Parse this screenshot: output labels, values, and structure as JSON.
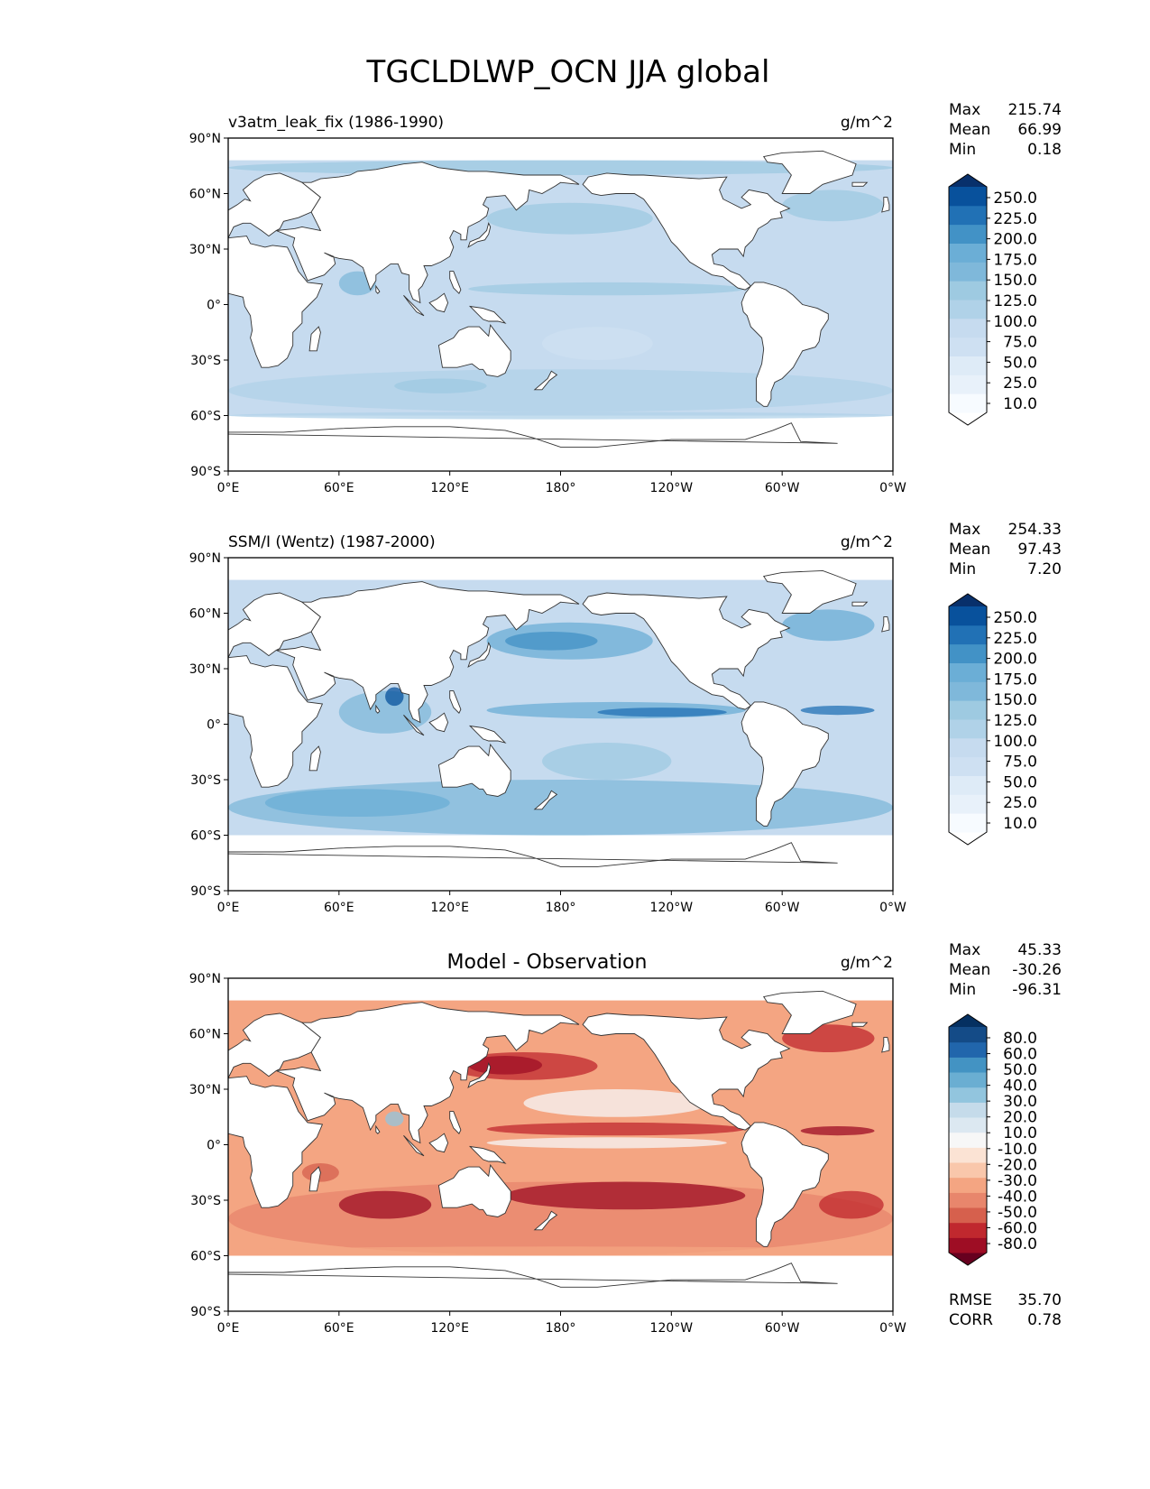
{
  "title": "TGCLDLWP_OCN JJA global",
  "lat_ticks": [
    "90°N",
    "60°N",
    "30°N",
    "0°",
    "30°S",
    "60°S",
    "90°S"
  ],
  "lon_ticks": [
    "0°E",
    "60°E",
    "120°E",
    "180°",
    "120°W",
    "60°W",
    "0°W"
  ],
  "colors": {
    "frame": "#000000",
    "land": "#ffffff",
    "coast": "#333333",
    "ocean_blue_base": "#c6dbef",
    "ocean_diff_base": "#f4a582"
  },
  "panels": [
    {
      "id": "model",
      "left_title": "v3atm_leak_fix (1986-1990)",
      "center_title": "",
      "units": "g/m^2",
      "stats": [
        {
          "label": "Max",
          "value": "215.74"
        },
        {
          "label": "Mean",
          "value": "66.99"
        },
        {
          "label": "Min",
          "value": "0.18"
        }
      ],
      "colorbar_labels": [
        "250.0",
        "225.0",
        "200.0",
        "175.0",
        "150.0",
        "125.0",
        "100.0",
        "75.0",
        "50.0",
        "25.0",
        "10.0"
      ],
      "colorbar_colors": [
        "#ffffff",
        "#f7fbff",
        "#e8f1fa",
        "#deebf7",
        "#cee0f2",
        "#c6dbef",
        "#b0d2e8",
        "#9ecae1",
        "#7fb8da",
        "#6baed6",
        "#4292c6",
        "#2171b5",
        "#08519c",
        "#08306b"
      ]
    },
    {
      "id": "obs",
      "left_title": "SSM/I (Wentz) (1987-2000)",
      "center_title": "",
      "units": "g/m^2",
      "stats": [
        {
          "label": "Max",
          "value": "254.33"
        },
        {
          "label": "Mean",
          "value": "97.43"
        },
        {
          "label": "Min",
          "value": "7.20"
        }
      ],
      "colorbar_labels": [
        "250.0",
        "225.0",
        "200.0",
        "175.0",
        "150.0",
        "125.0",
        "100.0",
        "75.0",
        "50.0",
        "25.0",
        "10.0"
      ],
      "colorbar_colors": [
        "#ffffff",
        "#f7fbff",
        "#e8f1fa",
        "#deebf7",
        "#cee0f2",
        "#c6dbef",
        "#b0d2e8",
        "#9ecae1",
        "#7fb8da",
        "#6baed6",
        "#4292c6",
        "#2171b5",
        "#08519c",
        "#08306b"
      ]
    },
    {
      "id": "diff",
      "left_title": "",
      "center_title": "Model - Observation",
      "units": "g/m^2",
      "stats": [
        {
          "label": "Max",
          "value": "45.33"
        },
        {
          "label": "Mean",
          "value": "-30.26"
        },
        {
          "label": "Min",
          "value": "-96.31"
        }
      ],
      "colorbar_labels": [
        "80.0",
        "60.0",
        "50.0",
        "40.0",
        "30.0",
        "20.0",
        "10.0",
        "-10.0",
        "-20.0",
        "-30.0",
        "-40.0",
        "-50.0",
        "-60.0",
        "-80.0"
      ],
      "colorbar_colors": [
        "#67001f",
        "#9e0d24",
        "#c0282e",
        "#d6604d",
        "#e8866c",
        "#f4a582",
        "#f9c7ab",
        "#fbe3d4",
        "#f7f7f7",
        "#dce8f1",
        "#c5dbea",
        "#92c5de",
        "#6aaed2",
        "#4393c3",
        "#2166ac",
        "#144b87",
        "#053061"
      ],
      "extra_stats": [
        {
          "label": "RMSE",
          "value": "35.70"
        },
        {
          "label": "CORR",
          "value": "0.78"
        }
      ]
    }
  ]
}
